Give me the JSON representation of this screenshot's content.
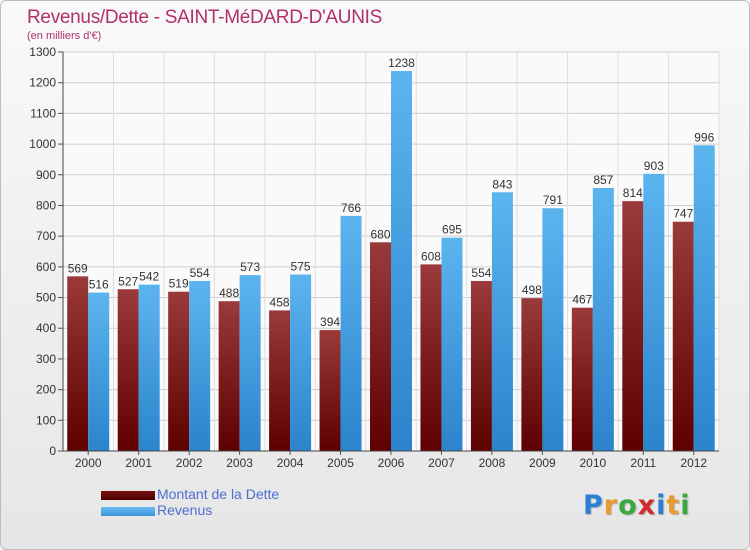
{
  "chart_data": {
    "type": "bar",
    "title": "Revenus/Dette - SAINT-MéDARD-D'AUNIS",
    "subtitle": "(en milliers d'€)",
    "categories": [
      "2000",
      "2001",
      "2002",
      "2003",
      "2004",
      "2005",
      "2006",
      "2007",
      "2008",
      "2009",
      "2010",
      "2011",
      "2012"
    ],
    "series": [
      {
        "name": "Montant de la Dette",
        "color": "#7a1010",
        "values": [
          569,
          527,
          519,
          488,
          458,
          394,
          680,
          608,
          554,
          498,
          467,
          814,
          747
        ]
      },
      {
        "name": "Revenus",
        "color": "#4aa3e6",
        "values": [
          516,
          542,
          554,
          573,
          575,
          766,
          1238,
          695,
          843,
          791,
          857,
          903,
          996
        ]
      }
    ],
    "ylim": [
      0,
      1300
    ],
    "yticks": [
      0,
      100,
      200,
      300,
      400,
      500,
      600,
      700,
      800,
      900,
      1000,
      1100,
      1200,
      1300
    ],
    "grid": true,
    "legend_position": "bottom-left"
  },
  "logo": {
    "text": "Proxiti",
    "letter_colors": [
      "#2a7fd4",
      "#e89a2a",
      "#3aa83a",
      "#d12a2a",
      "#2a7fd4",
      "#e89a2a",
      "#3aa83a"
    ]
  }
}
